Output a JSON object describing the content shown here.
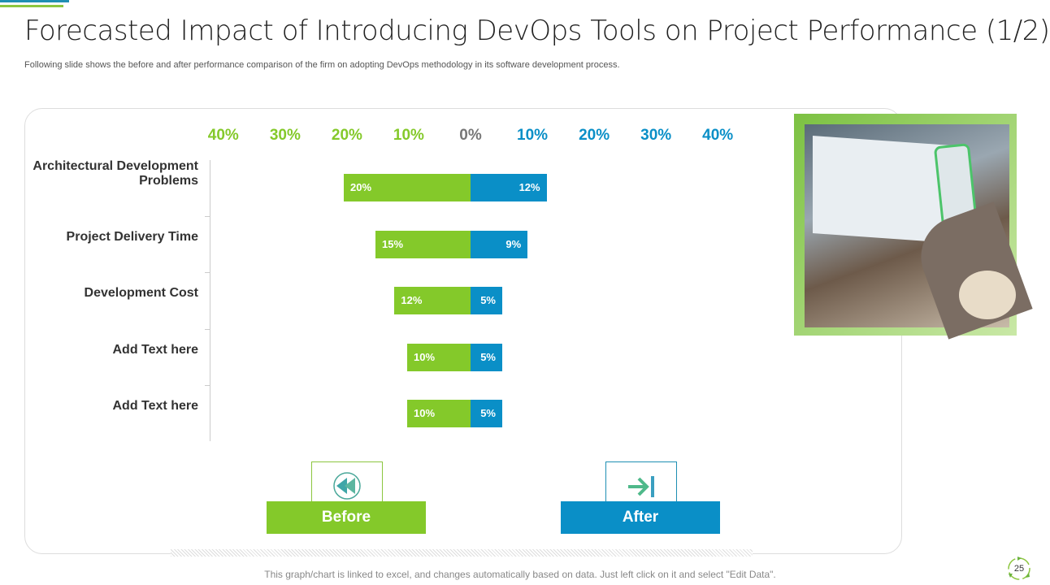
{
  "header": {
    "title": "Forecasted Impact of Introducing DevOps Tools on Project Performance (1/2)",
    "subtitle": "Following slide shows the before and after performance comparison of the firm on adopting DevOps methodology in its software development process."
  },
  "chart_data": {
    "type": "bar",
    "orientation": "horizontal-diverging",
    "categories": [
      "Architectural Development Problems",
      "Project Delivery Time",
      "Development Cost",
      "Add Text here",
      "Add Text here"
    ],
    "series": [
      {
        "name": "Before",
        "side": "left",
        "color": "#84c92a",
        "values": [
          20,
          15,
          12,
          10,
          10
        ],
        "labels": [
          "20%",
          "15%",
          "12%",
          "10%",
          "10%"
        ]
      },
      {
        "name": "After",
        "side": "right",
        "color": "#0a8fc7",
        "values": [
          12,
          9,
          5,
          5,
          5
        ],
        "labels": [
          "12%",
          "9%",
          "5%",
          "5%",
          "5%"
        ]
      }
    ],
    "ticks": [
      {
        "label": "40%",
        "value": -40
      },
      {
        "label": "30%",
        "value": -30
      },
      {
        "label": "20%",
        "value": -20
      },
      {
        "label": "10%",
        "value": -10
      },
      {
        "label": "0%",
        "value": 0
      },
      {
        "label": "10%",
        "value": 10
      },
      {
        "label": "20%",
        "value": 20
      },
      {
        "label": "30%",
        "value": 30
      },
      {
        "label": "40%",
        "value": 40
      }
    ],
    "xlim": [
      -40,
      40
    ]
  },
  "legend": {
    "before": "Before",
    "after": "After"
  },
  "footer": {
    "note": "This graph/chart is linked to excel, and changes automatically based on data. Just left click on it and select \"Edit Data\".",
    "page": "25"
  },
  "colors": {
    "green": "#84c92a",
    "blue": "#0a8fc7",
    "zero": "#777777"
  }
}
